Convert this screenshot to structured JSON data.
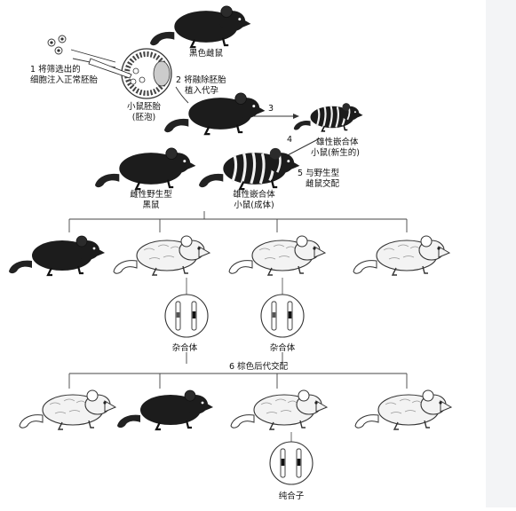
{
  "labels": {
    "black_female": "黑色雌鼠",
    "step1_line1": "1 将筛选出的",
    "step1_line2": "细胞注入正常胚胎",
    "step2_line1": "2 将融除胚胎",
    "step2_line2": "植入代孕",
    "blastocyst_line1": "小鼠胚胎",
    "blastocyst_line2": "(胚泡)",
    "step3": "3",
    "step4": "4",
    "newborn_chimera_line1": "雄性嵌合体",
    "newborn_chimera_line2": "小鼠(新生的)",
    "wild_female_line1": "雌性野生型",
    "wild_female_line2": "黑鼠",
    "adult_chimera_line1": "雄性嵌合体",
    "adult_chimera_line2": "小鼠(成体)",
    "step5_line1": "5 与野生型",
    "step5_line2": "雌鼠交配",
    "heterozygote_1": "杂合体",
    "heterozygote_2": "杂合体",
    "step6": "6 棕色后代交配",
    "homozygote": "纯合子"
  }
}
